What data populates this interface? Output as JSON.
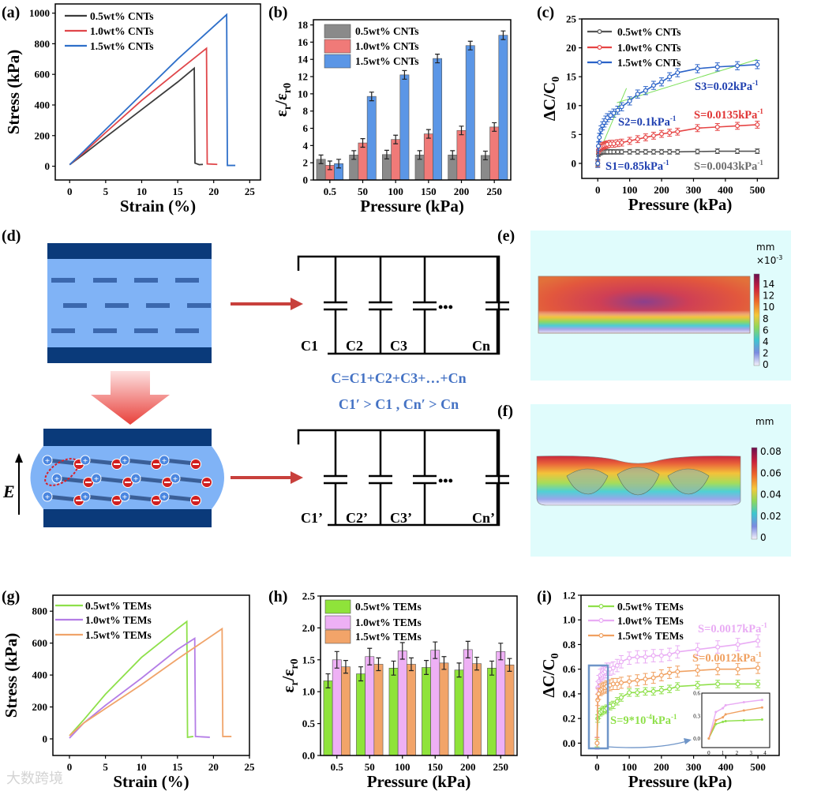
{
  "panel_labels": {
    "a": "(a)",
    "b": "(b)",
    "c": "(c)",
    "d": "(d)",
    "e": "(e)",
    "f": "(f)",
    "g": "(g)",
    "h": "(h)",
    "i": "(i)"
  },
  "schematic": {
    "field_label": "E",
    "top_caps": [
      "C1",
      "C2",
      "C3",
      "Cn"
    ],
    "bottom_caps": [
      "C1’",
      "C2’",
      "C3’",
      "Cn’"
    ],
    "ellipsis": "•••",
    "equation": "C=C1+C2+C3+…+Cn",
    "inequality": "C1′ > C1 , Cn′ > Cn",
    "text_color": "#4472c4"
  },
  "simulation_e": {
    "unit": "mm",
    "scale": "×10",
    "scale_exp": "-3",
    "colorbar_labels": [
      "14",
      "12",
      "10",
      "8",
      "6",
      "4",
      "2",
      "0"
    ]
  },
  "simulation_f": {
    "unit": "mm",
    "colorbar_labels": [
      "0.08",
      "0.06",
      "0.04",
      "0.02",
      "0"
    ]
  },
  "watermark": "大数跨境",
  "chart_data": [
    {
      "id": "a",
      "type": "line",
      "xlabel": "Strain (%)",
      "ylabel": [
        "Stress (kPa)"
      ],
      "xlim": [
        -2,
        26.5
      ],
      "ylim": [
        -90,
        1060
      ],
      "xticks": [
        0,
        5,
        10,
        15,
        20,
        25
      ],
      "xtick_labels": [
        "0",
        "5",
        "10",
        "15",
        "20",
        "25"
      ],
      "yticks": [
        0,
        200,
        400,
        600,
        800,
        1000
      ],
      "ytick_labels": [
        "0",
        "200",
        "400",
        "600",
        "800",
        "1000"
      ],
      "legend_placement": "top-left",
      "series": [
        {
          "name": "0.5wt% CNTs",
          "color": "#3c3c3c",
          "points": [
            [
              0,
              10
            ],
            [
              2,
              80
            ],
            [
              5,
              190
            ],
            [
              10,
              370
            ],
            [
              15,
              550
            ],
            [
              17.3,
              640
            ],
            [
              17.4,
              20
            ],
            [
              18,
              10
            ],
            [
              18.5,
              12
            ]
          ]
        },
        {
          "name": "1.0wt% CNTs",
          "color": "#e0464a",
          "points": [
            [
              0,
              10
            ],
            [
              2,
              90
            ],
            [
              5,
              220
            ],
            [
              10,
              430
            ],
            [
              15,
              620
            ],
            [
              19,
              770
            ],
            [
              19.1,
              15
            ],
            [
              20.5,
              12
            ]
          ]
        },
        {
          "name": "1.5wt% CNTs",
          "color": "#2e6fc9",
          "points": [
            [
              0,
              10
            ],
            [
              2,
              100
            ],
            [
              5,
              240
            ],
            [
              10,
              470
            ],
            [
              15,
              700
            ],
            [
              21.8,
              990
            ],
            [
              21.9,
              5
            ],
            [
              23,
              5
            ]
          ]
        }
      ]
    },
    {
      "id": "b",
      "type": "bar",
      "xlabel": "Pressure (kPa)",
      "ylabel": [
        "ε",
        "r",
        "/ε",
        "r0"
      ],
      "ylim": [
        0,
        18.6
      ],
      "categories": [
        "0.5",
        "50",
        "100",
        "150",
        "200",
        "250"
      ],
      "yticks": [
        0,
        2,
        4,
        6,
        8,
        10,
        12,
        14,
        16,
        18
      ],
      "ytick_labels": [
        "0",
        "2",
        "4",
        "6",
        "8",
        "10",
        "12",
        "14",
        "16",
        "18"
      ],
      "legend_placement": "top-left",
      "series": [
        {
          "name": "0.5wt% CNTs",
          "color": "#8a8a8a",
          "values": [
            2.4,
            2.9,
            2.95,
            2.9,
            2.9,
            2.85
          ],
          "err": 0.5
        },
        {
          "name": "1.0wt% CNTs",
          "color": "#f07a78",
          "values": [
            1.7,
            4.3,
            4.7,
            5.35,
            5.75,
            6.15
          ],
          "err": 0.5
        },
        {
          "name": "1.5wt% CNTs",
          "color": "#5b96e6",
          "values": [
            1.9,
            9.7,
            12.2,
            14.1,
            15.6,
            16.8
          ],
          "err": 0.5
        }
      ]
    },
    {
      "id": "c",
      "type": "line",
      "xlabel": "Pressure (kPa)",
      "ylabel": [
        "ΔC/C",
        "0"
      ],
      "xlim": [
        -50,
        566
      ],
      "ylim": [
        -2.6,
        25
      ],
      "xticks": [
        0,
        100,
        200,
        300,
        400,
        500
      ],
      "xtick_labels": [
        "0",
        "100",
        "200",
        "300",
        "400",
        "500"
      ],
      "yticks": [
        0,
        5,
        10,
        15,
        20,
        25
      ],
      "ytick_labels": [
        "0",
        "5",
        "10",
        "15",
        "20",
        "25"
      ],
      "legend_placement": "top-left",
      "markers": true,
      "x": [
        0,
        2,
        5,
        10,
        15,
        20,
        25,
        30,
        40,
        50,
        62.5,
        75,
        100,
        125,
        150,
        175,
        200,
        225,
        250,
        312.5,
        375,
        437.5,
        500
      ],
      "series": [
        {
          "name": "0.5wt% CNTs",
          "color": "#555555",
          "err": 0.4,
          "values": [
            0,
            1.6,
            1.8,
            1.9,
            2,
            2,
            2,
            2,
            2,
            2,
            2,
            2,
            2,
            2,
            2,
            2,
            2,
            2,
            2,
            2.05,
            2.1,
            2.1,
            2.1
          ]
        },
        {
          "name": "1.0wt% CNTs",
          "color": "#e64545",
          "err": 0.6,
          "values": [
            0,
            2.3,
            2.6,
            2.8,
            3,
            3.1,
            3.2,
            3.3,
            3.4,
            3.4,
            3.5,
            3.6,
            3.9,
            4.2,
            4.5,
            4.8,
            5.1,
            5.3,
            5.5,
            6.1,
            6.3,
            6.5,
            6.7
          ]
        },
        {
          "name": "1.5wt% CNTs",
          "color": "#2b63c8",
          "err": 0.7,
          "values": [
            0,
            3,
            4.5,
            5.8,
            6.5,
            7,
            7.5,
            7.9,
            8.3,
            8.7,
            9.2,
            9.8,
            10.8,
            12,
            12.6,
            13.5,
            14.1,
            15,
            15.7,
            16.4,
            16.7,
            16.9,
            17.1
          ]
        }
      ],
      "fit_lines": [
        [
          [
            -5,
            -0.8
          ],
          [
            10,
            3.5
          ]
        ],
        [
          [
            5,
            2
          ],
          [
            90,
            13
          ]
        ],
        [
          [
            60,
            10.5
          ],
          [
            500,
            18
          ]
        ]
      ],
      "fit_color": "#7de05a",
      "annotations": [
        {
          "text": "S3=0.02kPa",
          "sup": "-1",
          "color": "#1f3fb0"
        },
        {
          "text": "S=0.0135kPa",
          "sup": "-1",
          "color": "#e03535"
        },
        {
          "text": "S2=0.1kPa",
          "sup": "-1",
          "color": "#1f3fb0"
        },
        {
          "text": "S1=0.85kPa",
          "sup": "-1",
          "color": "#1f3fb0"
        },
        {
          "text": "S=0.0043kPa",
          "sup": "-1",
          "color": "#6e6e6e"
        }
      ]
    },
    {
      "id": "g",
      "type": "line",
      "xlabel": "Strain (%)",
      "ylabel": [
        "Stress (kPa)"
      ],
      "xlim": [
        -2.3,
        25
      ],
      "ylim": [
        -104,
        900
      ],
      "xticks": [
        0,
        5,
        10,
        15,
        20,
        25
      ],
      "xtick_labels": [
        "0",
        "5",
        "10",
        "15",
        "20",
        "25"
      ],
      "yticks": [
        0,
        200,
        400,
        600,
        800
      ],
      "ytick_labels": [
        "0",
        "200",
        "400",
        "600",
        "800"
      ],
      "legend_placement": "top-left",
      "series": [
        {
          "name": "0.5wt% TEMs",
          "color": "#8ee04a",
          "points": [
            [
              0,
              20
            ],
            [
              2,
              120
            ],
            [
              5,
              280
            ],
            [
              10,
              510
            ],
            [
              15,
              690
            ],
            [
              16.3,
              735
            ],
            [
              16.4,
              10
            ],
            [
              17.2,
              15
            ]
          ]
        },
        {
          "name": "1.0wt% TEMs",
          "color": "#b47de6",
          "points": [
            [
              0,
              5
            ],
            [
              2,
              100
            ],
            [
              5,
              210
            ],
            [
              10,
              380
            ],
            [
              15,
              560
            ],
            [
              17.4,
              630
            ],
            [
              17.5,
              15
            ],
            [
              19.5,
              10
            ]
          ]
        },
        {
          "name": "1.5wt% TEMs",
          "color": "#f0a46a",
          "points": [
            [
              0,
              20
            ],
            [
              2,
              100
            ],
            [
              5,
              190
            ],
            [
              10,
              340
            ],
            [
              15,
              500
            ],
            [
              21.2,
              690
            ],
            [
              21.3,
              15
            ],
            [
              22.5,
              15
            ]
          ]
        }
      ]
    },
    {
      "id": "h",
      "type": "bar",
      "xlabel": "Pressure (kPa)",
      "ylabel": [
        "ε",
        "r",
        "/ε",
        "r0"
      ],
      "ylim": [
        0,
        2.5
      ],
      "categories": [
        "0.5",
        "50",
        "100",
        "150",
        "200",
        "250"
      ],
      "yticks": [
        0,
        0.5,
        1,
        1.5,
        2,
        2.5
      ],
      "ytick_labels": [
        "0.0",
        "0.5",
        "1.0",
        "1.5",
        "2.0",
        "2.5"
      ],
      "legend_placement": "top-left",
      "series": [
        {
          "name": "0.5wt% TEMs",
          "color": "#8fe33a",
          "values": [
            1.17,
            1.28,
            1.37,
            1.38,
            1.34,
            1.37
          ],
          "err": 0.11
        },
        {
          "name": "1.0wt% TEMs",
          "color": "#eeb0f5",
          "values": [
            1.5,
            1.55,
            1.64,
            1.65,
            1.66,
            1.63
          ],
          "err": 0.13
        },
        {
          "name": "1.5wt% TEMs",
          "color": "#f2a469",
          "values": [
            1.39,
            1.43,
            1.43,
            1.45,
            1.44,
            1.42
          ],
          "err": 0.1
        }
      ]
    },
    {
      "id": "i",
      "type": "line",
      "xlabel": "Pressure (kPa)",
      "ylabel": [
        "ΔC/C",
        "0"
      ],
      "xlim": [
        -50,
        566
      ],
      "ylim": [
        -0.1,
        1.2
      ],
      "xticks": [
        0,
        100,
        200,
        300,
        400,
        500
      ],
      "xtick_labels": [
        "0",
        "100",
        "200",
        "300",
        "400",
        "500"
      ],
      "yticks": [
        0,
        0.2,
        0.4,
        0.6,
        0.8,
        1,
        1.2
      ],
      "ytick_labels": [
        "0.0",
        "0.2",
        "0.4",
        "0.6",
        "0.8",
        "1.0",
        "1.2"
      ],
      "legend_placement": "top-left",
      "markers": true,
      "x": [
        0,
        2,
        5,
        10,
        15,
        20,
        25,
        30,
        40,
        50,
        62.5,
        75,
        100,
        125,
        150,
        175,
        200,
        225,
        250,
        312.5,
        375,
        437.5,
        500
      ],
      "series": [
        {
          "name": "0.5wt% TEMs",
          "color": "#8fe04a",
          "err": 0.03,
          "values": [
            0,
            0.2,
            0.23,
            0.25,
            0.26,
            0.27,
            0.27,
            0.28,
            0.3,
            0.31,
            0.34,
            0.37,
            0.41,
            0.41,
            0.42,
            0.42,
            0.43,
            0.44,
            0.46,
            0.47,
            0.48,
            0.48,
            0.48
          ]
        },
        {
          "name": "1.0wt% TEMs",
          "color": "#e9acf4",
          "err": 0.05,
          "values": [
            0,
            0.45,
            0.5,
            0.55,
            0.56,
            0.57,
            0.58,
            0.6,
            0.6,
            0.61,
            0.63,
            0.66,
            0.69,
            0.7,
            0.7,
            0.71,
            0.71,
            0.72,
            0.74,
            0.76,
            0.78,
            0.8,
            0.83
          ]
        },
        {
          "name": "1.5wt% TEMs",
          "color": "#f0a060",
          "err": 0.045,
          "values": [
            0,
            0.35,
            0.4,
            0.43,
            0.44,
            0.45,
            0.45,
            0.46,
            0.47,
            0.48,
            0.48,
            0.49,
            0.5,
            0.51,
            0.52,
            0.53,
            0.55,
            0.57,
            0.58,
            0.59,
            0.6,
            0.6,
            0.61
          ]
        }
      ],
      "annotations": [
        {
          "text": "S=0.0017kPa",
          "sup": "-1",
          "color": "#e9acf4"
        },
        {
          "text": "S=0.0012kPa",
          "sup": "-1",
          "color": "#f0a060"
        },
        {
          "text": "S=9*10",
          "sup": "-4",
          "tail": "kPa",
          "sup2": "-1",
          "color": "#8fe04a"
        }
      ],
      "highlight_color": "#6f95c8",
      "inset": {
        "xlim": [
          -0.5,
          4.34
        ],
        "ylim": [
          -0.12,
          0.6
        ],
        "xticks": [
          0,
          1,
          2,
          3,
          4
        ],
        "xtick_labels": [
          "0",
          "1",
          "2",
          "3",
          "4"
        ],
        "yticks": [
          0,
          0.3,
          0.6
        ],
        "ytick_labels": [
          "0.0",
          "0.3",
          "0.6"
        ],
        "x": [
          0,
          0.5,
          1,
          1.2,
          2.5,
          3.8
        ],
        "series": [
          {
            "name": "0.5wt% TEMs",
            "color": "#8fe04a",
            "values": [
              0,
              0.19,
              0.22,
              0.23,
              0.24,
              0.25
            ]
          },
          {
            "name": "1.0wt% TEMs",
            "color": "#e9acf4",
            "values": [
              0,
              0.35,
              0.4,
              0.44,
              0.48,
              0.51
            ]
          },
          {
            "name": "1.5wt% TEMs",
            "color": "#f0a060",
            "values": [
              0,
              0.24,
              0.28,
              0.32,
              0.37,
              0.41
            ]
          }
        ]
      }
    }
  ]
}
